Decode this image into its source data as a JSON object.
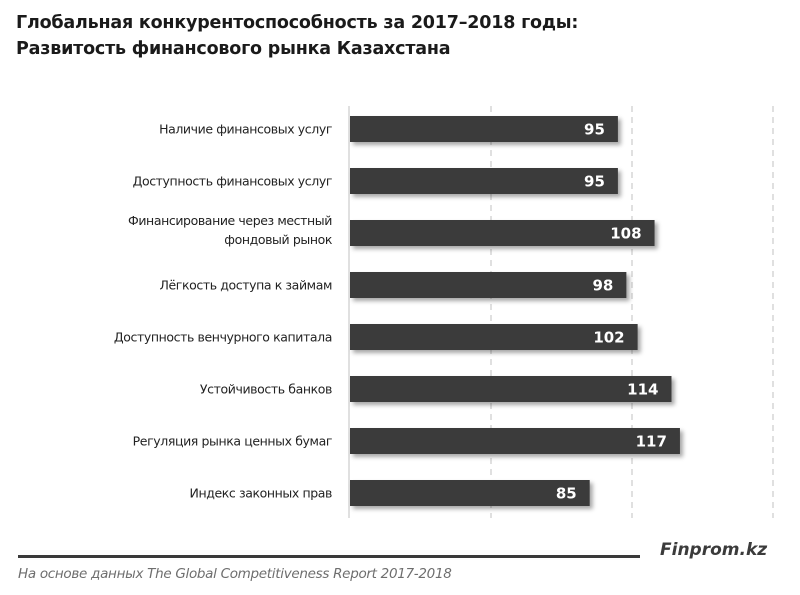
{
  "header": {
    "title_line1": "Глобальная конкурентоспособность за 2017–2018  годы:",
    "title_line2": "Развитость финансового рынка Казахстана"
  },
  "footer": {
    "brand": "Finprom.kz",
    "source": "На основе данных The Global Competitiveness Report 2017-2018"
  },
  "colors": {
    "bar": "#3a3a3a",
    "grid": "#cfcfcf",
    "axis": "#d6d6d6"
  },
  "chart_data": {
    "type": "bar",
    "orientation": "horizontal",
    "title": "Глобальная конкурентоспособность за 2017–2018  годы: Развитость финансового рынка Казахстана",
    "xlabel": "",
    "ylabel": "",
    "xlim": [
      0,
      150
    ],
    "grid_values": [
      50,
      100,
      150
    ],
    "grid": true,
    "legend": "none",
    "categories": [
      [
        "Наличие финансовых услуг"
      ],
      [
        "Доступность финансовых услуг"
      ],
      [
        "Финансирование через местный",
        "фондовый рынок"
      ],
      [
        "Лёгкость доступа к займам"
      ],
      [
        "Доступность венчурного капитала"
      ],
      [
        "Устойчивость банков"
      ],
      [
        "Регуляция рынка ценных бумаг"
      ],
      [
        "Индекс законных прав"
      ]
    ],
    "values": [
      95,
      95,
      108,
      98,
      102,
      114,
      117,
      85
    ],
    "data_labels": [
      "95",
      "95",
      "108",
      "98",
      "102",
      "114",
      "117",
      "85"
    ]
  }
}
